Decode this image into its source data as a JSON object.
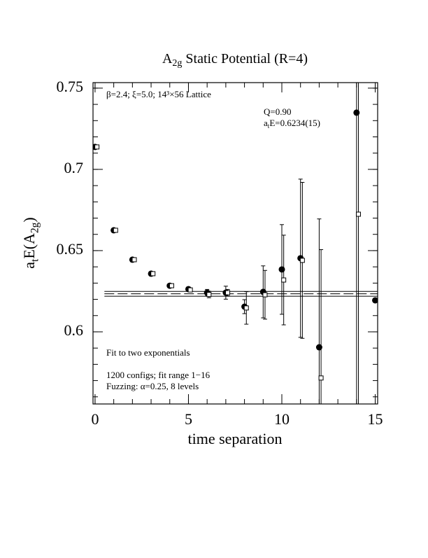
{
  "chart_data": {
    "type": "errorbar-scatter",
    "title": [
      {
        "text": "A"
      },
      {
        "text": "2g",
        "sub": true
      },
      {
        "text": " Static Potential (R=4)"
      }
    ],
    "x_label": [
      {
        "text": "time separation"
      }
    ],
    "y_label": [
      {
        "text": "a"
      },
      {
        "text": "t",
        "sub": true
      },
      {
        "text": "E(A"
      },
      {
        "text": "2g",
        "sub": true
      },
      {
        "text": ")"
      }
    ],
    "annotations": [
      {
        "lines": [
          [
            {
              "text": "β=2.4; ξ=5.0; 14³×56 Lattice"
            }
          ]
        ],
        "corner": "top-left"
      },
      {
        "lines": [
          [
            {
              "text": "Q=0.90"
            }
          ],
          [
            {
              "text": "a"
            },
            {
              "text": "t",
              "sub": true
            },
            {
              "text": "E=0.6234(15)"
            }
          ]
        ],
        "corner": "top-right"
      },
      {
        "lines": [
          [
            {
              "text": "Fit to two exponentials"
            }
          ],
          [],
          [
            {
              "text": "1200 configs; fit range 1−16"
            }
          ],
          [
            {
              "text": "Fuzzing: α=0.25, 8 levels"
            }
          ]
        ],
        "corner": "bottom-left"
      }
    ],
    "xlim": [
      -0.11,
      15.13
    ],
    "ylim": [
      0.5556,
      0.7534
    ],
    "xticks": [
      0,
      5,
      10,
      15
    ],
    "yticks": [
      0.6,
      0.65,
      0.7,
      0.75
    ],
    "minor_per_major": 5,
    "series": [
      {
        "marker": "circle",
        "color": "#000000",
        "x": [
          0,
          1,
          2,
          3,
          4,
          5,
          6,
          7,
          8,
          9,
          10,
          11,
          12,
          14,
          15
        ],
        "values": [
          0.7138,
          0.6625,
          0.6444,
          0.6358,
          0.6284,
          0.6263,
          0.6241,
          0.6241,
          0.6155,
          0.6246,
          0.6384,
          0.6453,
          0.5905,
          0.7349,
          0.6194
        ],
        "errors": [
          0.0005,
          0.0005,
          0.0005,
          0.0005,
          0.0006,
          0.0008,
          0.002,
          0.004,
          0.0043,
          0.016,
          0.0276,
          0.0487,
          0.079,
          0.2,
          0.001
        ]
      },
      {
        "marker": "square",
        "color": "#000000",
        "x": [
          0.1,
          1.1,
          2.1,
          3.1,
          4.1,
          5.1,
          6.1,
          7.1,
          8.1,
          9.1,
          10.1,
          11.1,
          12.1,
          14.1
        ],
        "values": [
          0.7138,
          0.6625,
          0.6444,
          0.6358,
          0.6284,
          0.6258,
          0.623,
          0.6241,
          0.6147,
          0.6228,
          0.6319,
          0.644,
          0.5716,
          0.6724
        ],
        "errors": [
          0.0005,
          0.0005,
          0.0005,
          0.0005,
          0.0006,
          0.0008,
          0.002,
          0.002,
          0.01,
          0.015,
          0.0276,
          0.048,
          0.079,
          0.2
        ]
      }
    ],
    "fit": {
      "value": 0.6234,
      "error": 0.0015,
      "x": [
        0.5,
        15.13
      ]
    }
  }
}
